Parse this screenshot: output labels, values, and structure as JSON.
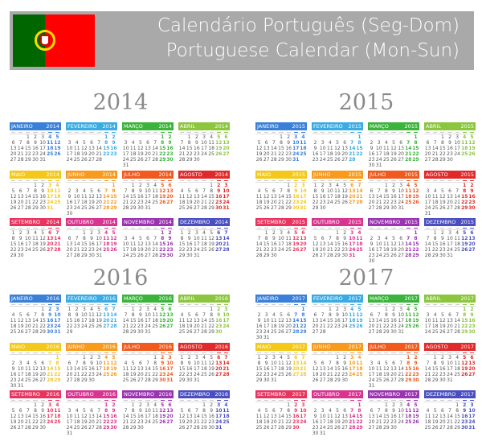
{
  "banner": {
    "title_pt": "Calendário Português (Seg-Dom)",
    "title_en": "Portuguese Calendar (Mon-Sun)",
    "flag": "portugal-flag"
  },
  "years": [
    2014,
    2015,
    2016,
    2017
  ],
  "months": [
    {
      "name": "JANEIRO",
      "color": "#3a7fd8"
    },
    {
      "name": "FEVEREIRO",
      "color": "#3aabe3"
    },
    {
      "name": "MARÇO",
      "color": "#3cb43c"
    },
    {
      "name": "ABRIL",
      "color": "#8cc63f"
    },
    {
      "name": "MAIO",
      "color": "#f4c81a"
    },
    {
      "name": "JUNHO",
      "color": "#f79a1e"
    },
    {
      "name": "JULHO",
      "color": "#f05a1e"
    },
    {
      "name": "AGOSTO",
      "color": "#e02a2a"
    },
    {
      "name": "SETEMBRO",
      "color": "#e83560"
    },
    {
      "name": "OUTUBRO",
      "color": "#d83590"
    },
    {
      "name": "NOVEMBRO",
      "color": "#9a35b0"
    },
    {
      "name": "DEZEMBRO",
      "color": "#4a4ec0"
    }
  ]
}
